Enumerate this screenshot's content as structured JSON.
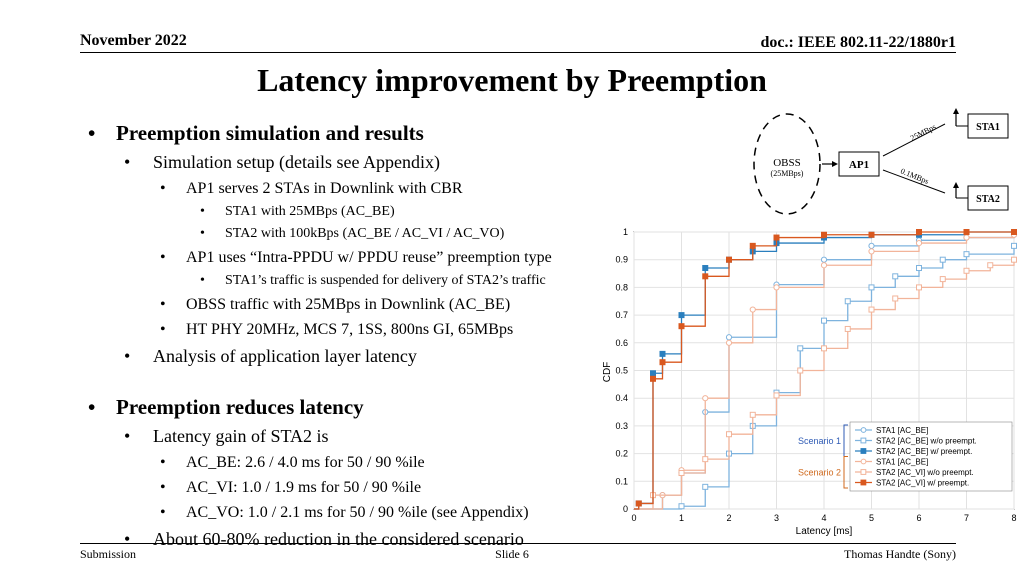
{
  "header": {
    "date": "November 2022",
    "doc": "doc.: IEEE 802.11-22/1880r1"
  },
  "title": "Latency improvement by Preemption",
  "bullets": [
    {
      "level": 0,
      "text": "Preemption simulation and results"
    },
    {
      "level": 1,
      "text": "Simulation setup (details see Appendix)"
    },
    {
      "level": 2,
      "text": "AP1 serves 2 STAs in Downlink with CBR"
    },
    {
      "level": 3,
      "text": "STA1 with 25MBps (AC_BE)"
    },
    {
      "level": 3,
      "text": "STA2 with 100kBps (AC_BE / AC_VI / AC_VO)"
    },
    {
      "level": 2,
      "text": "AP1 uses “Intra-PPDU w/ PPDU reuse” preemption type"
    },
    {
      "level": 3,
      "text": "STA1’s traffic is suspended for delivery of STA2’s traffic"
    },
    {
      "level": 2,
      "text": "OBSS traffic with 25MBps in Downlink (AC_BE)"
    },
    {
      "level": 2,
      "text": "HT PHY 20MHz, MCS 7, 1SS, 800ns GI, 65MBps"
    },
    {
      "level": 1,
      "text": "Analysis of application layer latency"
    },
    {
      "level": "gap",
      "text": ""
    },
    {
      "level": 0,
      "text": "Preemption reduces latency"
    },
    {
      "level": 1,
      "text": "Latency gain of STA2 is"
    },
    {
      "level": 2,
      "text": "AC_BE: 2.6 / 4.0 ms for 50 / 90 %ile"
    },
    {
      "level": 2,
      "text": "AC_VI: 1.0 / 1.9 ms for 50 / 90 %ile"
    },
    {
      "level": 2,
      "text": "AC_VO: 1.0 / 2.1 ms for 50 / 90 %ile (see Appendix)"
    },
    {
      "level": 1,
      "text": "About 60-80% reduction in the considered scenario"
    }
  ],
  "diagram": {
    "obss_label": "OBSS",
    "obss_rate": "(25MBps)",
    "ap": "AP1",
    "sta1": "STA1",
    "sta2": "STA2",
    "link1_rate": "25MBps",
    "link2_rate": "0.1MBps"
  },
  "chart_data": {
    "type": "line",
    "xlabel": "Latency [ms]",
    "ylabel": "CDF",
    "xlim": [
      0,
      8
    ],
    "ylim": [
      0,
      1
    ],
    "xticks": [
      0,
      1,
      2,
      3,
      4,
      5,
      6,
      7,
      8
    ],
    "yticks": [
      0,
      0.1,
      0.2,
      0.3,
      0.4,
      0.5,
      0.6,
      0.7,
      0.8,
      0.9,
      1
    ],
    "grid": true,
    "legend_position": "bottom-right",
    "groups": [
      {
        "name": "Scenario 1",
        "color": "#2f5bb5"
      },
      {
        "name": "Scenario 2",
        "color": "#d06a1e"
      }
    ],
    "series": [
      {
        "name": "STA1 [AC_BE]",
        "color": "#7eb3de",
        "marker": "circle-open",
        "group": 0,
        "x": [
          0,
          0.6,
          1.0,
          1.5,
          2.0,
          3.0,
          4.0,
          5.0,
          6.0,
          7.0,
          8.0
        ],
        "y": [
          0,
          0.05,
          0.13,
          0.35,
          0.62,
          0.81,
          0.9,
          0.95,
          0.97,
          0.98,
          0.99
        ]
      },
      {
        "name": "STA2 [AC_BE] w/o preempt.",
        "color": "#7eb3de",
        "marker": "square-open",
        "group": 0,
        "x": [
          0,
          1.0,
          1.5,
          2.0,
          2.5,
          3.0,
          3.5,
          4.0,
          4.5,
          5.0,
          5.5,
          6.0,
          6.5,
          7.0,
          8.0
        ],
        "y": [
          0,
          0.01,
          0.08,
          0.2,
          0.3,
          0.42,
          0.58,
          0.68,
          0.75,
          0.8,
          0.84,
          0.87,
          0.9,
          0.92,
          0.95
        ]
      },
      {
        "name": "STA2 [AC_BE] w/ preempt.",
        "color": "#2a7fbe",
        "marker": "square-filled",
        "group": 0,
        "x": [
          0,
          0.1,
          0.4,
          0.6,
          1.0,
          1.5,
          2.0,
          2.5,
          3.0,
          4.0,
          5.0,
          6.0,
          7.0,
          8.0
        ],
        "y": [
          0,
          0.02,
          0.49,
          0.56,
          0.7,
          0.87,
          0.9,
          0.93,
          0.96,
          0.98,
          0.99,
          0.99,
          1.0,
          1.0
        ]
      },
      {
        "name": "STA1 [AC_BE]",
        "color": "#f2b49a",
        "marker": "circle-open",
        "group": 1,
        "x": [
          0,
          0.6,
          1.0,
          1.5,
          2.0,
          2.5,
          3.0,
          4.0,
          5.0,
          6.0,
          7.0,
          8.0
        ],
        "y": [
          0,
          0.05,
          0.14,
          0.4,
          0.6,
          0.72,
          0.8,
          0.88,
          0.93,
          0.96,
          0.98,
          0.99
        ]
      },
      {
        "name": "STA2 [AC_VI] w/o preempt.",
        "color": "#f2b49a",
        "marker": "square-open",
        "group": 1,
        "x": [
          0,
          0.4,
          1.0,
          1.5,
          2.0,
          2.5,
          3.0,
          3.5,
          4.0,
          4.5,
          5.0,
          5.5,
          6.0,
          6.5,
          7.0,
          7.5,
          8.0
        ],
        "y": [
          0,
          0.05,
          0.13,
          0.18,
          0.27,
          0.34,
          0.41,
          0.5,
          0.58,
          0.65,
          0.72,
          0.76,
          0.8,
          0.83,
          0.86,
          0.88,
          0.9
        ]
      },
      {
        "name": "STA2 [AC_VI] w/ preempt.",
        "color": "#d9581f",
        "marker": "square-filled",
        "group": 1,
        "x": [
          0,
          0.1,
          0.4,
          0.6,
          1.0,
          1.5,
          2.0,
          2.5,
          3.0,
          4.0,
          5.0,
          6.0,
          7.0,
          8.0
        ],
        "y": [
          0,
          0.02,
          0.47,
          0.53,
          0.66,
          0.84,
          0.9,
          0.95,
          0.98,
          0.99,
          0.99,
          1.0,
          1.0,
          1.0
        ]
      }
    ]
  },
  "footer": {
    "left": "Submission",
    "center": "Slide 6",
    "right": "Thomas Handte (Sony)"
  }
}
